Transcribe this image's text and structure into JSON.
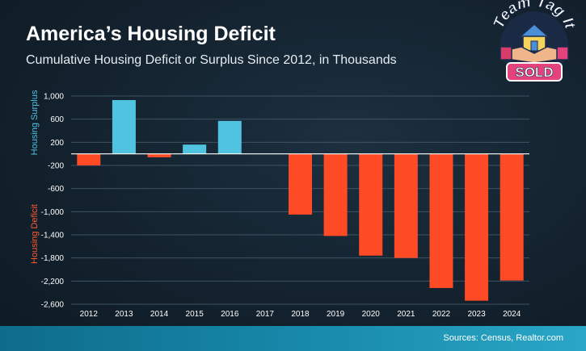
{
  "header": {
    "title": "America’s Housing Deficit",
    "subtitle": "Cumulative Housing Deficit or Surplus Since 2012, in Thousands"
  },
  "logo": {
    "line1": "Team Tag It",
    "line2": "SOLD",
    "icon": "house-handshake-icon"
  },
  "footer": {
    "sources": "Sources: Census, Realtor.com"
  },
  "colors": {
    "surplus": "#4fc3df",
    "deficit": "#ff4a26",
    "grid": "#3d5363",
    "zero_line": "#ffffff",
    "footer": "#1585a6"
  },
  "chart_data": {
    "type": "bar",
    "categories": [
      "2012",
      "2013",
      "2014",
      "2015",
      "2016",
      "2017",
      "2018",
      "2019",
      "2020",
      "2021",
      "2022",
      "2023",
      "2024"
    ],
    "values": [
      -200,
      930,
      -60,
      160,
      570,
      0,
      -1050,
      -1420,
      -1760,
      -1800,
      -2320,
      -2540,
      -2190
    ],
    "y_ticks": [
      "1,000",
      "600",
      "200",
      "-200",
      "-600",
      "-1,000",
      "-1,400",
      "-1,800",
      "-2,200",
      "-2,600"
    ],
    "y_tick_values": [
      1000,
      600,
      200,
      -200,
      -600,
      -1000,
      -1400,
      -1800,
      -2200,
      -2600
    ],
    "ylim": [
      -2600,
      1000
    ],
    "ylabel_top": "Housing Surplus",
    "ylabel_bottom": "Housing Deficit",
    "grid": true
  }
}
